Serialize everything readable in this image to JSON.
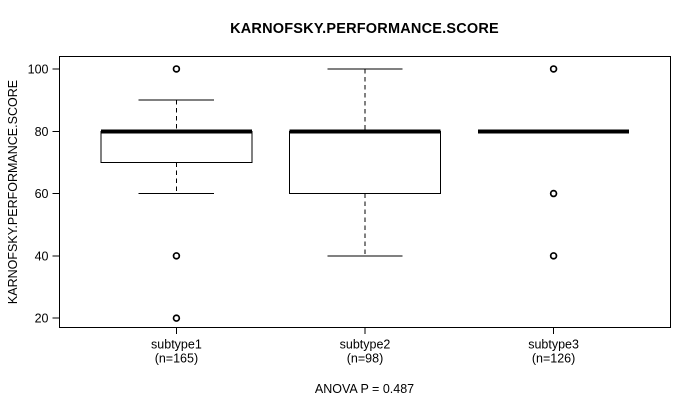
{
  "figure": {
    "background": "#ffffff",
    "line_color": "#000000",
    "box_fill": "#ffffff"
  },
  "chart_data": {
    "type": "boxplot",
    "title": "KARNOFSKY.PERFORMANCE.SCORE",
    "ylabel": "KARNOFSKY.PERFORMANCE.SCORE",
    "annotation": "ANOVA P = 0.487",
    "y_ticks": [
      20,
      40,
      60,
      80,
      100
    ],
    "ylim": [
      17,
      104
    ],
    "grid": false,
    "legend": null,
    "groups": [
      {
        "label": "subtype1",
        "sublabel": "(n=165)",
        "q1": 70,
        "median": 80,
        "q3": 80,
        "whisker_low": 60,
        "whisker_high": 90,
        "outliers": [
          100,
          40,
          20
        ]
      },
      {
        "label": "subtype2",
        "sublabel": "(n=98)",
        "q1": 60,
        "median": 80,
        "q3": 80,
        "whisker_low": 40,
        "whisker_high": 100,
        "outliers": []
      },
      {
        "label": "subtype3",
        "sublabel": "(n=126)",
        "q1": 80,
        "median": 80,
        "q3": 80,
        "whisker_low": 80,
        "whisker_high": 80,
        "outliers": [
          100,
          60,
          40
        ]
      }
    ]
  }
}
